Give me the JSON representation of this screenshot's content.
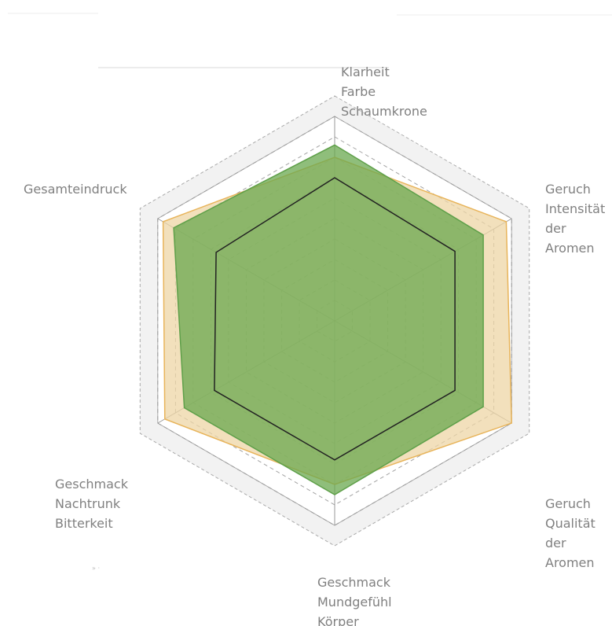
{
  "chart_data": {
    "type": "radar",
    "axes": [
      [
        "Klarheit",
        "Farbe",
        "Schaumkrone"
      ],
      [
        "Geruch",
        "Intensität",
        "der",
        "Aromen"
      ],
      [
        "Geruch",
        "Qualität",
        "der",
        "Aromen"
      ],
      [
        "Geschmack",
        "Mundgefühl",
        "Körper"
      ],
      [
        "Geschmack",
        "Nachtrunk",
        "Bitterkeit"
      ],
      [
        "Gesamteindruck"
      ]
    ],
    "rlim": [
      0,
      1
    ],
    "rings": 10,
    "grid": true,
    "series": [
      {
        "values": [
          0.8,
          0.97,
          1.0,
          0.8,
          0.96,
          0.97
        ],
        "color": "#e8b45a",
        "fill": "#eed6a6"
      },
      {
        "values": [
          0.86,
          0.84,
          0.84,
          0.85,
          0.85,
          0.91
        ],
        "color": "#5fa04a",
        "fill": "#6aa84f"
      },
      {
        "values": [
          0.7,
          0.68,
          0.68,
          0.68,
          0.68,
          0.67
        ],
        "color": "#222222",
        "fill": "none"
      }
    ]
  },
  "colors": {
    "grid": "#999999",
    "outer_band": "#f2f2f2"
  }
}
